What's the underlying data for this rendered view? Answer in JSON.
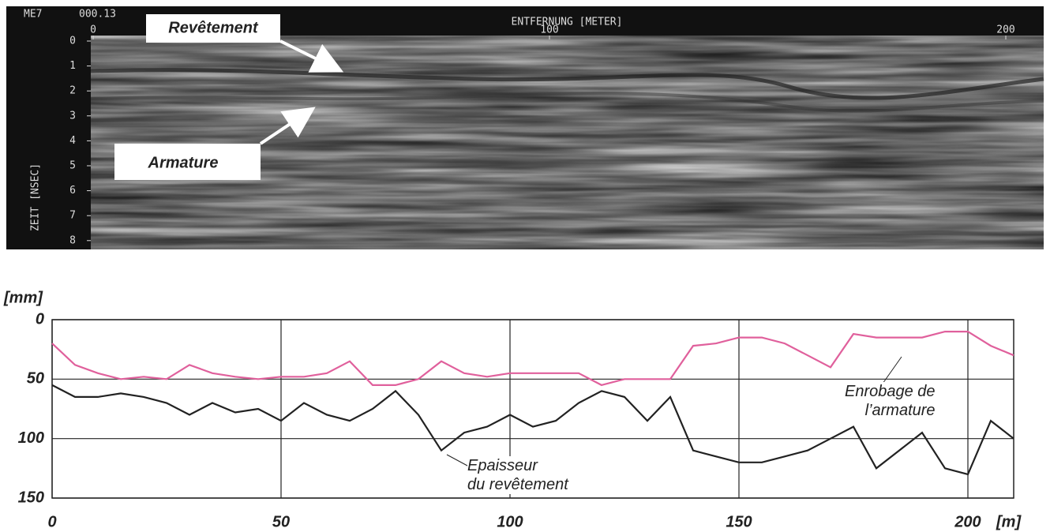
{
  "radargram": {
    "header_left": "ME7",
    "header_code": "000.13",
    "x_label": "ENTFERNUNG [METER]",
    "xticks": [
      0,
      100,
      200
    ],
    "y_label": "ZEIT [NSEC]",
    "yticks": [
      0,
      1,
      2,
      3,
      4,
      5,
      6,
      7,
      8
    ],
    "callouts": [
      "Revêtement",
      "Armature"
    ]
  },
  "chart_data": {
    "type": "line",
    "x_label": "[m]",
    "y_label": "[mm]",
    "x": [
      0,
      5,
      10,
      15,
      20,
      25,
      30,
      35,
      40,
      45,
      50,
      55,
      60,
      65,
      70,
      75,
      80,
      85,
      90,
      95,
      100,
      105,
      110,
      115,
      120,
      125,
      130,
      135,
      140,
      145,
      150,
      155,
      160,
      165,
      170,
      175,
      180,
      185,
      190,
      195,
      200,
      205,
      210
    ],
    "series": [
      {
        "name": "Enrobage de\nl’armature",
        "color": "#e0609c",
        "values": [
          20,
          38,
          45,
          50,
          48,
          50,
          38,
          45,
          48,
          50,
          48,
          48,
          45,
          35,
          55,
          55,
          50,
          35,
          45,
          48,
          45,
          45,
          45,
          45,
          55,
          50,
          50,
          50,
          22,
          20,
          15,
          15,
          20,
          30,
          40,
          12,
          15,
          15,
          15,
          10,
          10,
          22,
          30
        ]
      },
      {
        "name": "Epaisseur\ndu revêtement",
        "color": "#222222",
        "values": [
          55,
          65,
          65,
          62,
          65,
          70,
          80,
          70,
          78,
          75,
          85,
          70,
          80,
          85,
          75,
          60,
          80,
          110,
          95,
          90,
          80,
          90,
          85,
          70,
          60,
          65,
          85,
          65,
          110,
          115,
          120,
          120,
          115,
          110,
          100,
          90,
          125,
          110,
          95,
          125,
          130,
          85,
          100
        ]
      }
    ],
    "xlim": [
      0,
      210
    ],
    "ylim": [
      0,
      150
    ],
    "y_inverted": true,
    "xticks": [
      0,
      50,
      100,
      150,
      200
    ],
    "yticks": [
      0,
      50,
      100,
      150
    ],
    "grid": true
  }
}
